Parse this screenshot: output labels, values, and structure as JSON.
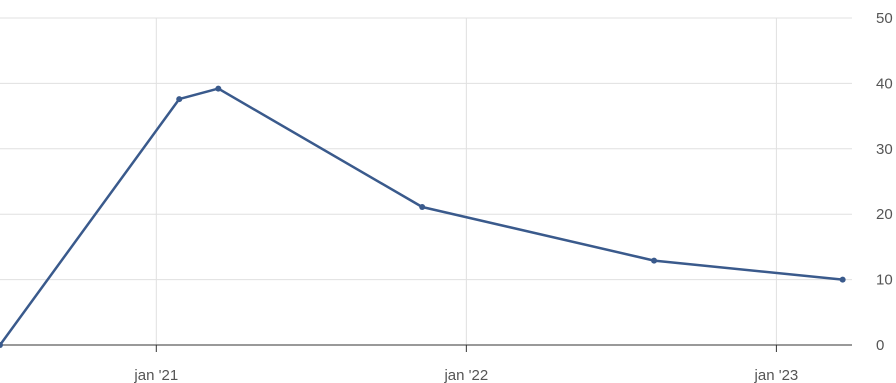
{
  "chart_data": {
    "type": "line",
    "title": "",
    "xlabel": "",
    "ylabel": "",
    "x": [
      "2020-07-01",
      "2021-01-28",
      "2021-03-15",
      "2021-11-10",
      "2022-08-10",
      "2023-03-20"
    ],
    "series": [
      {
        "values": [
          0,
          37.6,
          39.2,
          21.1,
          12.9,
          10.0
        ],
        "color": "#3a5a8c"
      }
    ],
    "ylim": [
      0,
      50
    ],
    "xlim": [
      "2020-07-01",
      "2023-03-31"
    ],
    "y_ticks": [
      0,
      10,
      20,
      30,
      40,
      50
    ],
    "y_tick_labels": [
      "0",
      "10",
      "20",
      "30",
      "40",
      "50"
    ],
    "x_ticks": [
      "2021-01-01",
      "2022-01-01",
      "2023-01-01"
    ],
    "x_tick_labels": [
      "jan '21",
      "jan '22",
      "jan '23"
    ],
    "grid": true,
    "y_axis_position": "right",
    "legend": "none"
  }
}
